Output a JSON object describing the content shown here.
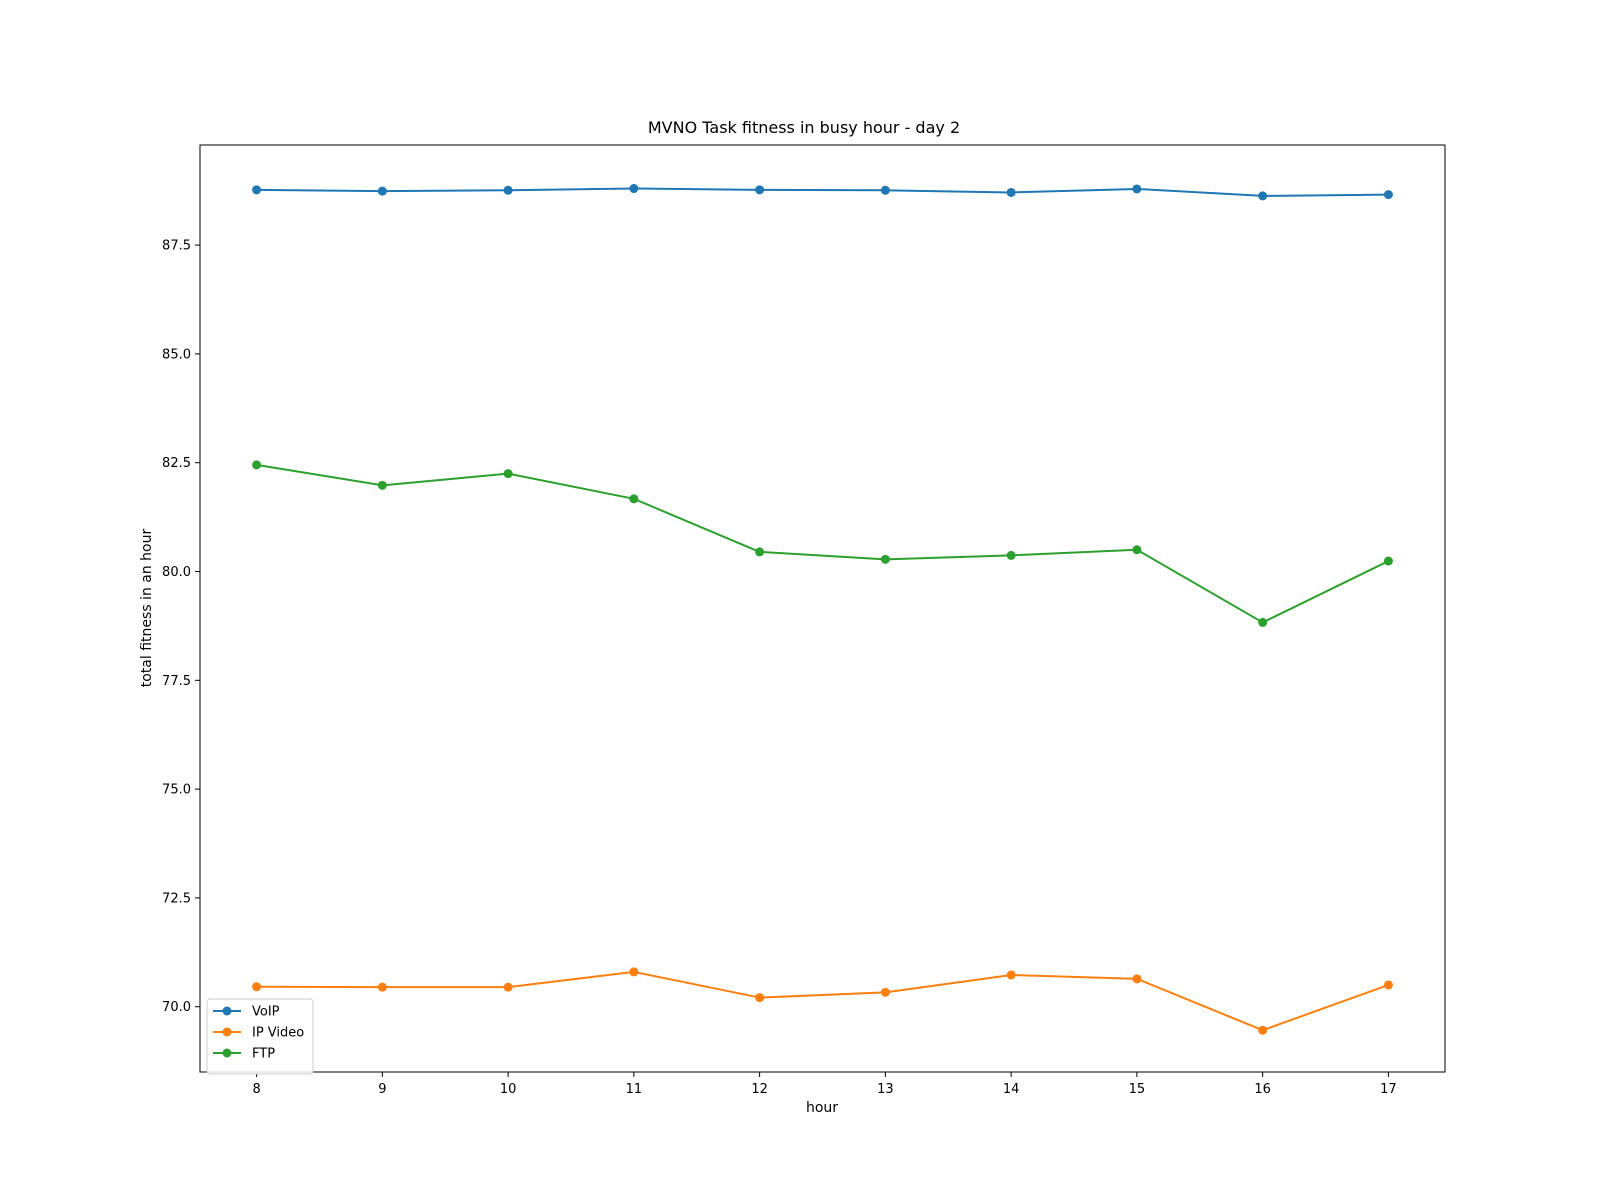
{
  "chart_data": {
    "type": "line",
    "title": "MVNO Task fitness in busy hour - day 2",
    "xlabel": "hour",
    "ylabel": "total fitness in an hour",
    "x": [
      8,
      9,
      10,
      11,
      12,
      13,
      14,
      15,
      16,
      17
    ],
    "xticks": [
      "8",
      "9",
      "10",
      "11",
      "12",
      "13",
      "14",
      "15",
      "16",
      "17"
    ],
    "yticks": [
      "70.0",
      "72.5",
      "75.0",
      "77.5",
      "80.0",
      "82.5",
      "85.0",
      "87.5"
    ],
    "ytick_values": [
      70.0,
      72.5,
      75.0,
      77.5,
      80.0,
      82.5,
      85.0,
      87.5
    ],
    "xlim": [
      7.55,
      17.45
    ],
    "ylim": [
      68.5,
      89.8
    ],
    "grid": false,
    "legend_position": "lower-left",
    "series": [
      {
        "name": "VoIP",
        "color": "#1f77b4",
        "marker": "circle",
        "values": [
          88.77,
          88.74,
          88.76,
          88.8,
          88.77,
          88.76,
          88.71,
          88.79,
          88.63,
          88.66
        ]
      },
      {
        "name": "IP Video",
        "color": "#ff7f0e",
        "marker": "circle",
        "values": [
          70.46,
          70.45,
          70.45,
          70.8,
          70.21,
          70.33,
          70.73,
          70.64,
          69.46,
          70.5
        ]
      },
      {
        "name": "FTP",
        "color": "#2ca02c",
        "marker": "circle",
        "values": [
          82.45,
          81.98,
          82.25,
          81.67,
          80.45,
          80.28,
          80.37,
          80.5,
          78.83,
          80.24
        ]
      }
    ]
  }
}
